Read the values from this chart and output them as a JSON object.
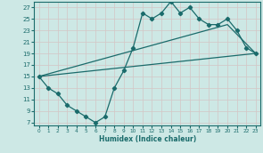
{
  "title": "",
  "xlabel": "Humidex (Indice chaleur)",
  "ylabel": "",
  "bg_color": "#cde8e5",
  "line_color": "#1a6b6b",
  "grid_color": "#b8d8d5",
  "xlim": [
    -0.5,
    23.5
  ],
  "ylim": [
    6.5,
    28
  ],
  "xticks": [
    0,
    1,
    2,
    3,
    4,
    5,
    6,
    7,
    8,
    9,
    10,
    11,
    12,
    13,
    14,
    15,
    16,
    17,
    18,
    19,
    20,
    21,
    22,
    23
  ],
  "yticks": [
    7,
    9,
    11,
    13,
    15,
    17,
    19,
    21,
    23,
    25,
    27
  ],
  "line1_x": [
    0,
    1,
    2,
    3,
    4,
    5,
    6,
    7,
    8,
    9,
    10,
    11,
    12,
    13,
    14,
    15,
    16,
    17,
    18,
    19,
    20,
    21,
    22,
    23
  ],
  "line1_y": [
    15,
    13,
    12,
    10,
    9,
    8,
    7,
    8,
    13,
    16,
    20,
    26,
    25,
    26,
    28,
    26,
    27,
    25,
    24,
    24,
    25,
    23,
    20,
    19
  ],
  "line2_x": [
    0,
    23
  ],
  "line2_y": [
    15,
    19
  ],
  "line3_x": [
    0,
    20,
    23
  ],
  "line3_y": [
    15,
    24,
    19
  ]
}
